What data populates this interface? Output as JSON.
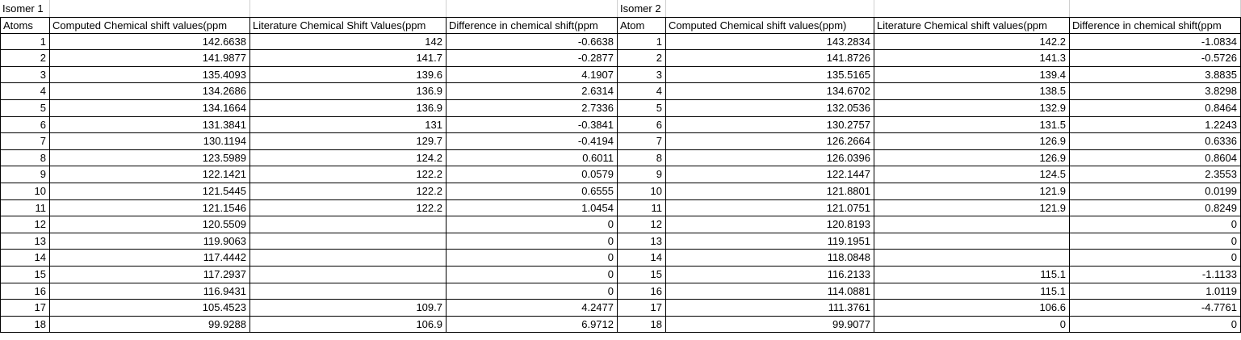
{
  "colors": {
    "table_border": "#000000",
    "faint_gridline": "#cfcfcf",
    "text": "#000000",
    "background": "#ffffff"
  },
  "isomer1": {
    "label": "Isomer 1",
    "headers": {
      "atom": "Atoms",
      "computed": "Computed Chemical shift values(ppm",
      "literature": "Literature Chemical Shift Values(ppm",
      "difference": "Difference in chemical shift(ppm"
    },
    "rows": [
      {
        "atom": "1",
        "computed": "142.6638",
        "literature": "142",
        "difference": "-0.6638"
      },
      {
        "atom": "2",
        "computed": "141.9877",
        "literature": "141.7",
        "difference": "-0.2877"
      },
      {
        "atom": "3",
        "computed": "135.4093",
        "literature": "139.6",
        "difference": "4.1907"
      },
      {
        "atom": "4",
        "computed": "134.2686",
        "literature": "136.9",
        "difference": "2.6314"
      },
      {
        "atom": "5",
        "computed": "134.1664",
        "literature": "136.9",
        "difference": "2.7336"
      },
      {
        "atom": "6",
        "computed": "131.3841",
        "literature": "131",
        "difference": "-0.3841"
      },
      {
        "atom": "7",
        "computed": "130.1194",
        "literature": "129.7",
        "difference": "-0.4194"
      },
      {
        "atom": "8",
        "computed": "123.5989",
        "literature": "124.2",
        "difference": "0.6011"
      },
      {
        "atom": "9",
        "computed": "122.1421",
        "literature": "122.2",
        "difference": "0.0579"
      },
      {
        "atom": "10",
        "computed": "121.5445",
        "literature": "122.2",
        "difference": "0.6555"
      },
      {
        "atom": "11",
        "computed": "121.1546",
        "literature": "122.2",
        "difference": "1.0454"
      },
      {
        "atom": "12",
        "computed": "120.5509",
        "literature": "",
        "difference": "0"
      },
      {
        "atom": "13",
        "computed": "119.9063",
        "literature": "",
        "difference": "0"
      },
      {
        "atom": "14",
        "computed": "117.4442",
        "literature": "",
        "difference": "0"
      },
      {
        "atom": "15",
        "computed": "117.2937",
        "literature": "",
        "difference": "0"
      },
      {
        "atom": "16",
        "computed": "116.9431",
        "literature": "",
        "difference": "0"
      },
      {
        "atom": "17",
        "computed": "105.4523",
        "literature": "109.7",
        "difference": "4.2477"
      },
      {
        "atom": "18",
        "computed": "99.9288",
        "literature": "106.9",
        "difference": "6.9712"
      }
    ]
  },
  "isomer2": {
    "label": "Isomer 2",
    "headers": {
      "atom": "Atom",
      "computed": "Computed Chemical shift values(ppm)",
      "literature": "Literature Chemical shift values(ppm",
      "difference": "Difference in chemical shift(ppm"
    },
    "rows": [
      {
        "atom": "1",
        "computed": "143.2834",
        "literature": "142.2",
        "difference": "-1.0834"
      },
      {
        "atom": "2",
        "computed": "141.8726",
        "literature": "141.3",
        "difference": "-0.5726"
      },
      {
        "atom": "3",
        "computed": "135.5165",
        "literature": "139.4",
        "difference": "3.8835"
      },
      {
        "atom": "4",
        "computed": "134.6702",
        "literature": "138.5",
        "difference": "3.8298"
      },
      {
        "atom": "5",
        "computed": "132.0536",
        "literature": "132.9",
        "difference": "0.8464"
      },
      {
        "atom": "6",
        "computed": "130.2757",
        "literature": "131.5",
        "difference": "1.2243"
      },
      {
        "atom": "7",
        "computed": "126.2664",
        "literature": "126.9",
        "difference": "0.6336"
      },
      {
        "atom": "8",
        "computed": "126.0396",
        "literature": "126.9",
        "difference": "0.8604"
      },
      {
        "atom": "9",
        "computed": "122.1447",
        "literature": "124.5",
        "difference": "2.3553"
      },
      {
        "atom": "10",
        "computed": "121.8801",
        "literature": "121.9",
        "difference": "0.0199"
      },
      {
        "atom": "11",
        "computed": "121.0751",
        "literature": "121.9",
        "difference": "0.8249"
      },
      {
        "atom": "12",
        "computed": "120.8193",
        "literature": "",
        "difference": "0"
      },
      {
        "atom": "13",
        "computed": "119.1951",
        "literature": "",
        "difference": "0"
      },
      {
        "atom": "14",
        "computed": "118.0848",
        "literature": "",
        "difference": "0"
      },
      {
        "atom": "15",
        "computed": "116.2133",
        "literature": "115.1",
        "difference": "-1.1133"
      },
      {
        "atom": "16",
        "computed": "114.0881",
        "literature": "115.1",
        "difference": "1.0119"
      },
      {
        "atom": "17",
        "computed": "111.3761",
        "literature": "106.6",
        "difference": "-4.7761"
      },
      {
        "atom": "18",
        "computed": "99.9077",
        "literature": "0",
        "difference": "0"
      }
    ]
  }
}
